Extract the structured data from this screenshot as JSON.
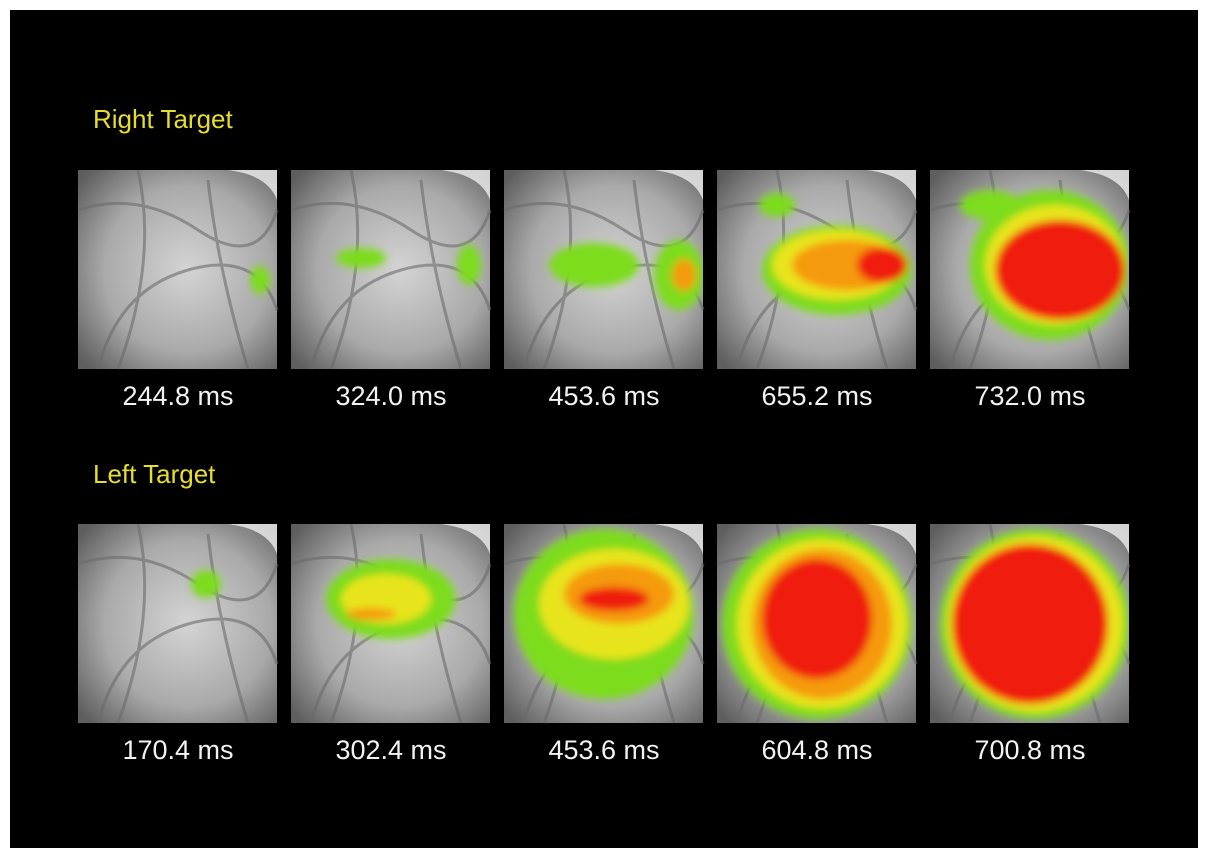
{
  "rows": [
    {
      "title": "Right Target",
      "frames": [
        "244.8 ms",
        "324.0 ms",
        "453.6 ms",
        "655.2 ms",
        "732.0 ms"
      ]
    },
    {
      "title": "Left Target",
      "frames": [
        "170.4 ms",
        "302.4 ms",
        "453.6 ms",
        "604.8 ms",
        "700.8 ms"
      ]
    }
  ]
}
